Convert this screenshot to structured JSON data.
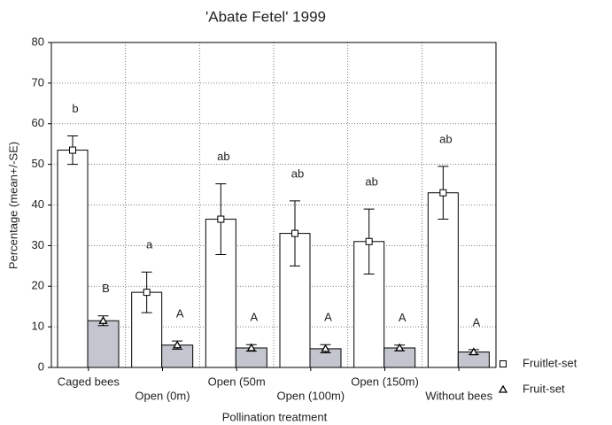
{
  "chart_data": {
    "type": "bar",
    "title": "'Abate Fetel' 1999",
    "xlabel": "Pollination treatment",
    "ylabel": "Percentage (mean+/-SE)",
    "categories": [
      "Caged bees",
      "Open (0m)",
      "Open (50m",
      "Open (100m)",
      "Open (150m)",
      "Without bees"
    ],
    "series": [
      {
        "name": "Fruitlet-set",
        "color": "#ffffff",
        "marker": "square",
        "values": [
          53.5,
          18.5,
          36.5,
          33,
          31,
          43
        ],
        "errors": [
          3.5,
          5,
          8.7,
          8,
          8,
          6.5
        ],
        "letters": [
          "b",
          "a",
          "ab",
          "ab",
          "ab",
          "ab"
        ]
      },
      {
        "name": "Fruit-set",
        "color": "#c3c6cf",
        "marker": "triangle",
        "values": [
          11.5,
          5.5,
          4.8,
          4.6,
          4.8,
          3.8
        ],
        "errors": [
          1.2,
          1,
          0.8,
          1,
          0.7,
          0.6
        ],
        "letters": [
          "B",
          "A",
          "A",
          "A",
          "A",
          "A"
        ]
      }
    ],
    "ylim": [
      0,
      80
    ],
    "yticks": [
      0,
      10,
      20,
      30,
      40,
      50,
      60,
      70,
      80
    ],
    "grid": true
  }
}
